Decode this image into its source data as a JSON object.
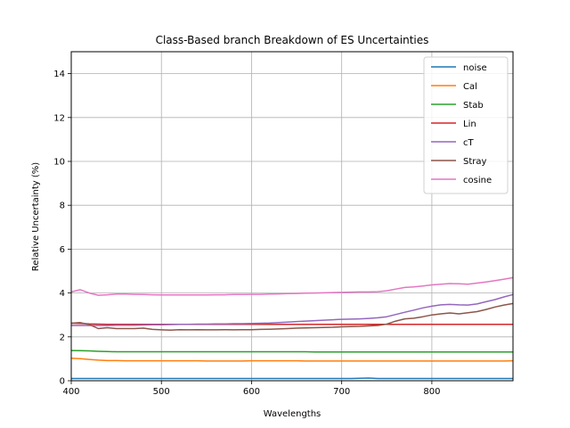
{
  "chart_data": {
    "type": "line",
    "title": "Class-Based branch Breakdown of ES Uncertainties",
    "xlabel": "Wavelengths",
    "ylabel": "Relative Uncertainty (%)",
    "xlim": [
      400,
      890
    ],
    "ylim": [
      0,
      15
    ],
    "xticks": [
      400,
      500,
      600,
      700,
      800
    ],
    "yticks": [
      0,
      2,
      4,
      6,
      8,
      10,
      12,
      14
    ],
    "grid": true,
    "legend_position": "top-right",
    "x": [
      400,
      410,
      420,
      430,
      440,
      450,
      460,
      470,
      480,
      490,
      500,
      510,
      520,
      530,
      540,
      550,
      560,
      570,
      580,
      590,
      600,
      610,
      620,
      630,
      640,
      650,
      660,
      670,
      680,
      690,
      700,
      710,
      720,
      730,
      740,
      750,
      760,
      770,
      780,
      790,
      800,
      810,
      820,
      830,
      840,
      850,
      860,
      870,
      880,
      890
    ],
    "series": [
      {
        "name": "noise",
        "color": "#1f77b4",
        "values": [
          0.1,
          0.1,
          0.1,
          0.1,
          0.1,
          0.1,
          0.1,
          0.1,
          0.1,
          0.1,
          0.1,
          0.1,
          0.1,
          0.1,
          0.1,
          0.1,
          0.1,
          0.1,
          0.1,
          0.1,
          0.1,
          0.1,
          0.1,
          0.1,
          0.1,
          0.1,
          0.1,
          0.1,
          0.1,
          0.1,
          0.1,
          0.1,
          0.11,
          0.12,
          0.1,
          0.1,
          0.1,
          0.1,
          0.1,
          0.1,
          0.1,
          0.1,
          0.1,
          0.1,
          0.1,
          0.1,
          0.1,
          0.1,
          0.1,
          0.1
        ]
      },
      {
        "name": "Cal",
        "color": "#ff7f0e",
        "values": [
          1.03,
          1.01,
          0.97,
          0.94,
          0.92,
          0.92,
          0.91,
          0.91,
          0.91,
          0.91,
          0.91,
          0.91,
          0.91,
          0.91,
          0.91,
          0.9,
          0.9,
          0.9,
          0.9,
          0.9,
          0.91,
          0.91,
          0.91,
          0.91,
          0.91,
          0.91,
          0.9,
          0.9,
          0.9,
          0.9,
          0.9,
          0.9,
          0.9,
          0.9,
          0.9,
          0.9,
          0.9,
          0.9,
          0.9,
          0.9,
          0.9,
          0.9,
          0.9,
          0.9,
          0.9,
          0.9,
          0.9,
          0.9,
          0.9,
          0.91
        ]
      },
      {
        "name": "Stab",
        "color": "#2ca02c",
        "values": [
          1.38,
          1.37,
          1.36,
          1.34,
          1.33,
          1.32,
          1.32,
          1.32,
          1.32,
          1.32,
          1.32,
          1.32,
          1.32,
          1.32,
          1.32,
          1.32,
          1.32,
          1.32,
          1.32,
          1.32,
          1.32,
          1.32,
          1.32,
          1.32,
          1.32,
          1.32,
          1.32,
          1.31,
          1.31,
          1.31,
          1.31,
          1.31,
          1.31,
          1.31,
          1.31,
          1.31,
          1.31,
          1.31,
          1.31,
          1.31,
          1.31,
          1.31,
          1.31,
          1.31,
          1.31,
          1.31,
          1.31,
          1.31,
          1.31,
          1.31
        ]
      },
      {
        "name": "Lin",
        "color": "#d62728",
        "values": [
          2.62,
          2.61,
          2.59,
          2.58,
          2.57,
          2.57,
          2.57,
          2.57,
          2.57,
          2.57,
          2.57,
          2.57,
          2.57,
          2.57,
          2.57,
          2.57,
          2.57,
          2.57,
          2.57,
          2.57,
          2.57,
          2.57,
          2.57,
          2.57,
          2.57,
          2.57,
          2.57,
          2.57,
          2.57,
          2.57,
          2.57,
          2.57,
          2.57,
          2.57,
          2.57,
          2.57,
          2.57,
          2.57,
          2.57,
          2.57,
          2.57,
          2.57,
          2.57,
          2.57,
          2.57,
          2.57,
          2.57,
          2.57,
          2.57,
          2.57
        ]
      },
      {
        "name": "cT",
        "color": "#9467bd",
        "values": [
          2.52,
          2.52,
          2.52,
          2.52,
          2.52,
          2.53,
          2.53,
          2.53,
          2.54,
          2.55,
          2.55,
          2.56,
          2.57,
          2.57,
          2.58,
          2.58,
          2.59,
          2.59,
          2.6,
          2.6,
          2.61,
          2.62,
          2.63,
          2.65,
          2.67,
          2.7,
          2.72,
          2.74,
          2.76,
          2.78,
          2.8,
          2.81,
          2.82,
          2.84,
          2.87,
          2.92,
          3.02,
          3.12,
          3.22,
          3.32,
          3.4,
          3.46,
          3.48,
          3.46,
          3.45,
          3.5,
          3.6,
          3.7,
          3.82,
          3.93
        ]
      },
      {
        "name": "Stray",
        "color": "#8c564b",
        "values": [
          2.62,
          2.65,
          2.56,
          2.38,
          2.42,
          2.38,
          2.38,
          2.38,
          2.4,
          2.34,
          2.32,
          2.31,
          2.33,
          2.32,
          2.33,
          2.32,
          2.32,
          2.33,
          2.32,
          2.33,
          2.33,
          2.34,
          2.35,
          2.36,
          2.38,
          2.4,
          2.41,
          2.42,
          2.43,
          2.44,
          2.46,
          2.47,
          2.48,
          2.5,
          2.52,
          2.58,
          2.72,
          2.82,
          2.85,
          2.92,
          3.0,
          3.05,
          3.09,
          3.05,
          3.1,
          3.15,
          3.25,
          3.36,
          3.45,
          3.52
        ]
      },
      {
        "name": "cosine",
        "color": "#e377c2",
        "values": [
          4.05,
          4.15,
          4.0,
          3.9,
          3.92,
          3.95,
          3.95,
          3.94,
          3.93,
          3.92,
          3.91,
          3.91,
          3.91,
          3.91,
          3.91,
          3.91,
          3.92,
          3.92,
          3.93,
          3.93,
          3.94,
          3.94,
          3.95,
          3.96,
          3.97,
          3.98,
          3.99,
          4.0,
          4.01,
          4.02,
          4.03,
          4.04,
          4.05,
          4.05,
          4.06,
          4.1,
          4.18,
          4.25,
          4.28,
          4.32,
          4.37,
          4.4,
          4.43,
          4.42,
          4.4,
          4.45,
          4.5,
          4.56,
          4.63,
          4.7
        ]
      }
    ]
  }
}
